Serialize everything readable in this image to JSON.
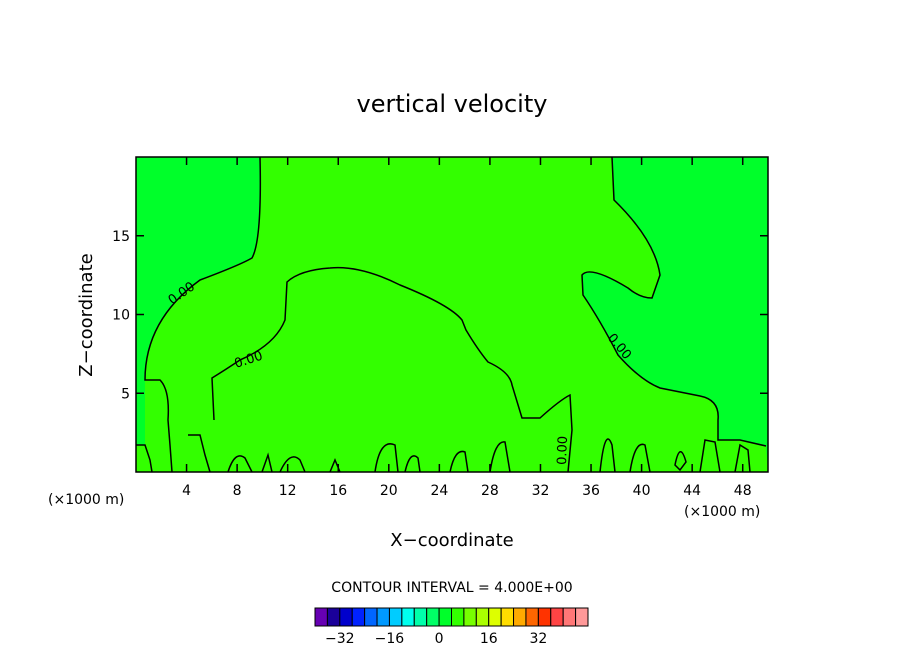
{
  "chart_data": {
    "type": "heatmap",
    "title": "vertical velocity",
    "xlabel": "X−coordinate",
    "ylabel": "Z−coordinate",
    "x_unit_left": "(×1000 m)",
    "x_unit_right": "(×1000 m)",
    "xlim": [
      0,
      50
    ],
    "ylim": [
      0,
      20
    ],
    "x_ticks": [
      4,
      8,
      12,
      16,
      20,
      24,
      28,
      32,
      36,
      40,
      44,
      48
    ],
    "y_ticks": [
      5,
      10,
      15
    ],
    "contour_interval_text": "CONTOUR INTERVAL = 4.000E+00",
    "contour_interval": 4,
    "contour_labels": [
      "0.00",
      "0.00",
      "0.00",
      "0.00"
    ],
    "background_color": "#00ff2a",
    "near_zero_color": "#33ff00",
    "colorbar": {
      "colors": [
        "#6600b3",
        "#1a0099",
        "#0000cc",
        "#0022ff",
        "#0066ff",
        "#0099ff",
        "#00ccff",
        "#00ffee",
        "#00ffaa",
        "#00ff66",
        "#00ff2a",
        "#33ff00",
        "#77ff00",
        "#aaff00",
        "#ddff00",
        "#ffdd00",
        "#ffaa00",
        "#ff6600",
        "#ff3300",
        "#ff4444",
        "#ff7777",
        "#ff9999"
      ],
      "tick_labels": [
        "−32",
        "−16",
        "0",
        "16",
        "32"
      ],
      "tick_values": [
        -32,
        -16,
        0,
        16,
        32
      ],
      "min": -40,
      "max": 48
    }
  }
}
